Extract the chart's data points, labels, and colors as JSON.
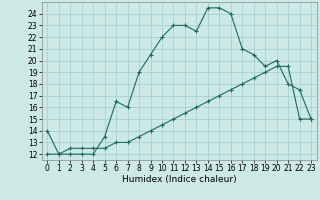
{
  "xlabel": "Humidex (Indice chaleur)",
  "background_color": "#cce9e5",
  "grid_color": "#aacfcc",
  "line_color": "#1a6b5a",
  "line1_x": [
    0,
    1,
    2,
    3,
    4,
    5,
    6,
    7,
    8,
    9,
    10,
    11,
    12,
    13,
    14,
    15,
    16,
    17,
    18,
    19,
    20,
    21,
    22,
    23
  ],
  "line1_y": [
    14,
    12,
    12,
    12,
    12,
    13.5,
    16.5,
    16,
    19,
    20.5,
    22,
    23,
    23,
    22.5,
    24.5,
    24.5,
    24,
    21,
    20.5,
    19.5,
    20,
    18,
    17.5,
    15
  ],
  "line2_x": [
    0,
    1,
    2,
    3,
    4,
    5,
    6,
    7,
    8,
    9,
    10,
    11,
    12,
    13,
    14,
    15,
    16,
    17,
    18,
    19,
    20,
    21,
    22,
    23
  ],
  "line2_y": [
    12,
    12,
    12.5,
    12.5,
    12.5,
    12.5,
    13,
    13,
    13.5,
    14,
    14.5,
    15,
    15.5,
    16,
    16.5,
    17,
    17.5,
    18,
    18.5,
    19,
    19.5,
    19.5,
    15,
    15
  ],
  "xlim": [
    -0.5,
    23.5
  ],
  "ylim": [
    11.5,
    25.0
  ],
  "yticks": [
    12,
    13,
    14,
    15,
    16,
    17,
    18,
    19,
    20,
    21,
    22,
    23,
    24
  ],
  "xtick_labels": [
    "0",
    "1",
    "2",
    "3",
    "4",
    "5",
    "6",
    "7",
    "8",
    "9",
    "10",
    "11",
    "12",
    "13",
    "14",
    "15",
    "16",
    "17",
    "18",
    "19",
    "20",
    "21",
    "22",
    "23"
  ],
  "tick_fontsize": 5.5,
  "xlabel_fontsize": 6.5
}
